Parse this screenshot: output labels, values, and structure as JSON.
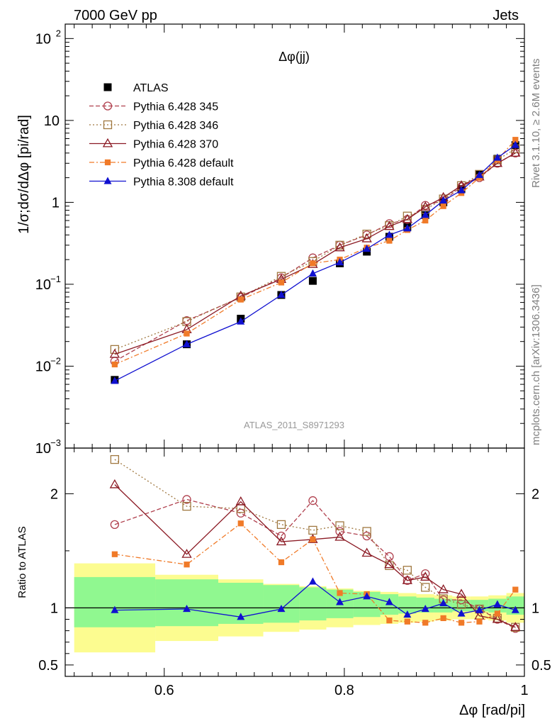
{
  "header": {
    "energy_label": "7000 GeV pp",
    "process_label": "Jets"
  },
  "side_labels": {
    "rivet": "Rivet 3.1.10, ≥ 2.6M events",
    "source": "mcplots.cern.ch [arXiv:1306.3436]"
  },
  "analysis_id": "ATLAS_2011_S8971293",
  "chart_data": [
    {
      "type": "line",
      "panel": "main",
      "title": "Δφ(jj)",
      "xlabel": "Δφ [rad/pi]",
      "ylabel": "1/σ;dσ/dΔφ [pi/rad]",
      "xlim": [
        0.49,
        1.0
      ],
      "ylim": [
        0.001,
        150
      ],
      "yscale": "log",
      "yticks": [
        {
          "value": 0.001,
          "label": "10",
          "exp": "−3"
        },
        {
          "value": 0.01,
          "label": "10",
          "exp": "−2"
        },
        {
          "value": 0.1,
          "label": "10",
          "exp": "−1"
        },
        {
          "value": 1,
          "label": "1",
          "exp": ""
        },
        {
          "value": 10,
          "label": "10",
          "exp": ""
        },
        {
          "value": 100,
          "label": "10",
          "exp": "2"
        }
      ],
      "legend_position": "top-left",
      "x": [
        0.545,
        0.625,
        0.685,
        0.73,
        0.765,
        0.795,
        0.825,
        0.85,
        0.87,
        0.89,
        0.91,
        0.93,
        0.95,
        0.97,
        0.99
      ],
      "series": [
        {
          "name": "ATLAS",
          "color": "#000000",
          "marker": "square-filled",
          "line": "none",
          "values": [
            0.0068,
            0.0185,
            0.038,
            0.074,
            0.11,
            0.18,
            0.25,
            0.38,
            0.5,
            0.7,
            1.0,
            1.45,
            2.2,
            3.4,
            5.0
          ]
        },
        {
          "name": "Pythia 6.428 345",
          "color": "#b0404e",
          "marker": "circle-open",
          "line": "dashed",
          "values": [
            0.0115,
            0.036,
            0.069,
            0.12,
            0.21,
            0.3,
            0.4,
            0.55,
            0.62,
            0.92,
            1.05,
            1.55,
            2.0,
            3.0,
            4.0
          ]
        },
        {
          "name": "Pythia 6.428 346",
          "color": "#a07840",
          "marker": "square-open",
          "line": "dotted",
          "values": [
            0.016,
            0.035,
            0.07,
            0.125,
            0.19,
            0.3,
            0.41,
            0.52,
            0.68,
            0.82,
            1.1,
            1.6,
            2.2,
            3.3,
            4.5
          ]
        },
        {
          "name": "Pythia 6.428 370",
          "color": "#8b1a24",
          "marker": "triangle-open",
          "line": "solid",
          "values": [
            0.014,
            0.028,
            0.072,
            0.115,
            0.175,
            0.28,
            0.36,
            0.51,
            0.62,
            0.88,
            1.15,
            1.6,
            2.05,
            3.0,
            4.0
          ]
        },
        {
          "name": "Pythia 6.428 default",
          "color": "#f07a28",
          "marker": "square-filled-small",
          "line": "dashdot",
          "values": [
            0.0105,
            0.025,
            0.065,
            0.105,
            0.18,
            0.2,
            0.28,
            0.34,
            0.46,
            0.6,
            0.9,
            1.3,
            2.0,
            3.3,
            5.8
          ]
        },
        {
          "name": "Pythia 8.308 default",
          "color": "#1010d0",
          "marker": "triangle-filled",
          "line": "solid",
          "values": [
            0.0066,
            0.0185,
            0.035,
            0.074,
            0.135,
            0.185,
            0.27,
            0.4,
            0.48,
            0.7,
            1.05,
            1.4,
            2.15,
            3.5,
            5.0
          ]
        }
      ]
    },
    {
      "type": "line",
      "panel": "ratio",
      "xlabel": "Δφ [rad/pi]",
      "ylabel": "Ratio to ATLAS",
      "xlim": [
        0.49,
        1.0
      ],
      "ylim": [
        0.5,
        2.5
      ],
      "ylim_display": [
        0.4,
        2.4
      ],
      "xticks": [
        0.6,
        0.8,
        1.0
      ],
      "xtick_labels": [
        "0.6",
        "0.8",
        "1"
      ],
      "yticks": [
        0.5,
        1,
        2
      ],
      "ytick_labels": [
        "0.5",
        "1",
        "2"
      ],
      "reference_line": 1,
      "x": [
        0.545,
        0.625,
        0.685,
        0.73,
        0.765,
        0.795,
        0.825,
        0.85,
        0.87,
        0.89,
        0.91,
        0.93,
        0.95,
        0.97,
        0.99
      ],
      "bands": {
        "bin_edges": [
          0.5,
          0.59,
          0.66,
          0.71,
          0.75,
          0.78,
          0.81,
          0.84,
          0.86,
          0.88,
          0.9,
          0.92,
          0.94,
          0.96,
          0.98,
          1.0
        ],
        "stat": {
          "color": "#90f890",
          "low": [
            0.83,
            0.84,
            0.86,
            0.87,
            0.89,
            0.91,
            0.92,
            0.94,
            0.95,
            0.96,
            0.96,
            0.97,
            0.97,
            0.96,
            0.94
          ],
          "high": [
            1.27,
            1.25,
            1.22,
            1.2,
            1.18,
            1.16,
            1.14,
            1.12,
            1.1,
            1.09,
            1.08,
            1.07,
            1.07,
            1.08,
            1.1
          ]
        },
        "total": {
          "color": "#fcfc90",
          "low": [
            0.61,
            0.71,
            0.75,
            0.79,
            0.81,
            0.83,
            0.85,
            0.86,
            0.87,
            0.88,
            0.89,
            0.9,
            0.9,
            0.89,
            0.87
          ]
        }
      },
      "series": [
        {
          "name": "Pythia 6.428 345",
          "values": [
            1.73,
            1.95,
            1.83,
            1.63,
            1.94,
            1.67,
            1.63,
            1.45,
            1.24,
            1.3,
            1.07,
            1.07,
            0.99,
            0.9,
            0.82
          ]
        },
        {
          "name": "Pythia 6.428 346",
          "values": [
            2.3,
            1.89,
            1.87,
            1.73,
            1.68,
            1.72,
            1.67,
            1.37,
            1.33,
            1.18,
            1.08,
            1.03,
            0.99,
            0.91,
            0.83
          ]
        },
        {
          "name": "Pythia 6.428 370",
          "values": [
            2.08,
            1.47,
            1.93,
            1.58,
            1.6,
            1.62,
            1.48,
            1.38,
            1.24,
            1.27,
            1.16,
            1.12,
            0.93,
            0.9,
            0.83
          ]
        },
        {
          "name": "Pythia 6.428 default",
          "values": [
            1.47,
            1.38,
            1.74,
            1.4,
            1.6,
            1.13,
            1.12,
            0.89,
            0.88,
            0.87,
            0.91,
            0.87,
            0.88,
            0.95,
            1.16
          ]
        },
        {
          "name": "Pythia 8.308 default",
          "values": [
            0.98,
            0.99,
            0.92,
            0.99,
            1.23,
            1.05,
            1.1,
            1.05,
            0.94,
            0.99,
            1.04,
            0.95,
            0.98,
            1.03,
            0.98
          ]
        }
      ]
    }
  ]
}
